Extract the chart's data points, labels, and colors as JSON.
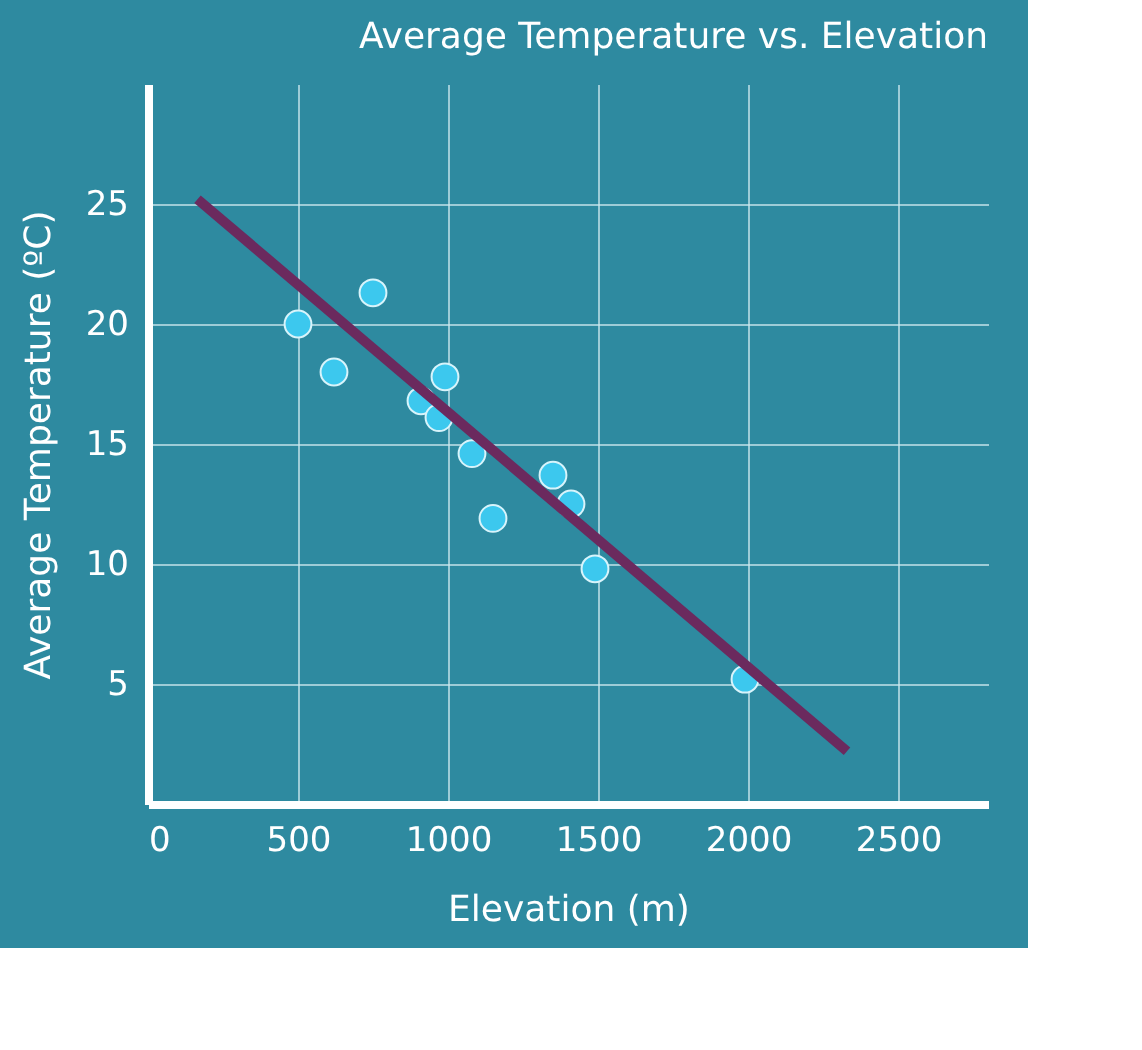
{
  "chart_data": {
    "type": "scatter",
    "title": "Average Temperature vs. Elevation",
    "xlabel": "Elevation (m)",
    "ylabel": "Average Temperature (ºC)",
    "xlim": [
      0,
      2800
    ],
    "ylim": [
      0,
      30
    ],
    "xticks": [
      0,
      500,
      1000,
      1500,
      2000,
      2500
    ],
    "yticks": [
      5,
      10,
      15,
      20,
      25
    ],
    "grid": true,
    "series": [
      {
        "color": "#3cc8ee",
        "marker": "circle",
        "x": [
          500,
          750,
          620,
          990,
          910,
          970,
          1080,
          1350,
          1410,
          1150,
          1490,
          1990
        ],
        "values": [
          20,
          21.3,
          18,
          17.8,
          16.8,
          16.1,
          14.6,
          13.7,
          12.5,
          11.9,
          9.8,
          5.2
        ]
      },
      {
        "type": "line",
        "color": "#6b2a5e",
        "line_style": "solid",
        "marker": "none",
        "x": [
          165,
          2330
        ],
        "values": [
          25.2,
          2.2
        ]
      }
    ]
  }
}
